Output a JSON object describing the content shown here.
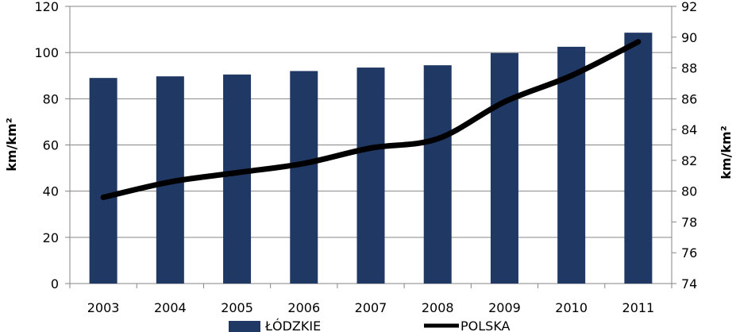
{
  "chart_data": {
    "type": "bar+line",
    "categories": [
      "2003",
      "2004",
      "2005",
      "2006",
      "2007",
      "2008",
      "2009",
      "2010",
      "2011"
    ],
    "series": [
      {
        "name": "ŁÓDZKIE",
        "type": "bar",
        "axis": "left",
        "color": "#1f3864",
        "values": [
          89,
          89.7,
          90.5,
          92,
          93.5,
          94.5,
          99.8,
          102.5,
          108.6
        ]
      },
      {
        "name": "POLSKA",
        "type": "line",
        "axis": "right",
        "color": "#000000",
        "values": [
          79.6,
          80.6,
          81.2,
          81.8,
          82.8,
          83.4,
          85.8,
          87.5,
          89.7
        ]
      }
    ],
    "ylabel_left": "km/km²",
    "ylabel_right": "km/km²",
    "ylim_left": [
      0,
      120
    ],
    "yticks_left": [
      "0",
      "20",
      "40",
      "60",
      "80",
      "100",
      "120"
    ],
    "ylim_right": [
      74,
      92
    ],
    "yticks_right": [
      "74",
      "76",
      "78",
      "80",
      "82",
      "84",
      "86",
      "88",
      "90",
      "92"
    ],
    "grid": "horizontal",
    "legend": "bottom"
  }
}
